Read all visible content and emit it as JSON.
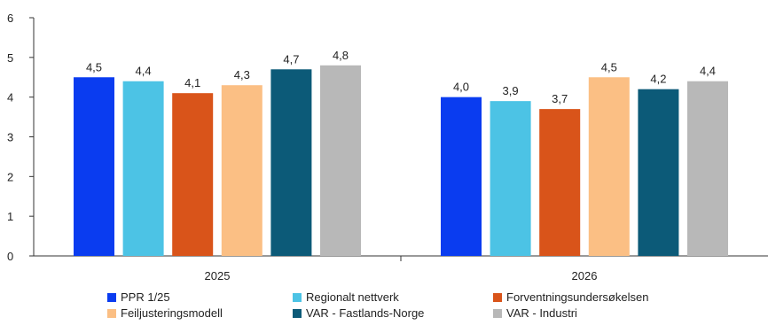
{
  "chart_data": {
    "type": "bar",
    "title": "",
    "xlabel": "",
    "ylabel": "",
    "categories": [
      "2025",
      "2026"
    ],
    "ylim": [
      0,
      6
    ],
    "yticks": [
      0,
      1,
      2,
      3,
      4,
      5,
      6
    ],
    "grid": false,
    "legend_position": "bottom",
    "series": [
      {
        "name": "PPR 1/25",
        "color": "#0a3cf0",
        "values": [
          4.5,
          4.0
        ],
        "labels": [
          "4,5",
          "4,0"
        ]
      },
      {
        "name": "Regionalt nettverk",
        "color": "#4cc3e5",
        "values": [
          4.4,
          3.9
        ],
        "labels": [
          "4,4",
          "3,9"
        ]
      },
      {
        "name": "Forventningsundersøkelsen",
        "color": "#d9541a",
        "values": [
          4.1,
          3.7
        ],
        "labels": [
          "4,1",
          "3,7"
        ]
      },
      {
        "name": "Feiljusteringsmodell",
        "color": "#fbbf84",
        "values": [
          4.3,
          4.5
        ],
        "labels": [
          "4,3",
          "4,5"
        ]
      },
      {
        "name": "VAR - Fastlands-Norge",
        "color": "#0c5a78",
        "values": [
          4.7,
          4.2
        ],
        "labels": [
          "4,7",
          "4,2"
        ]
      },
      {
        "name": "VAR - Industri",
        "color": "#b8b8b8",
        "values": [
          4.8,
          4.4
        ],
        "labels": [
          "4,8",
          "4,4"
        ]
      }
    ]
  }
}
